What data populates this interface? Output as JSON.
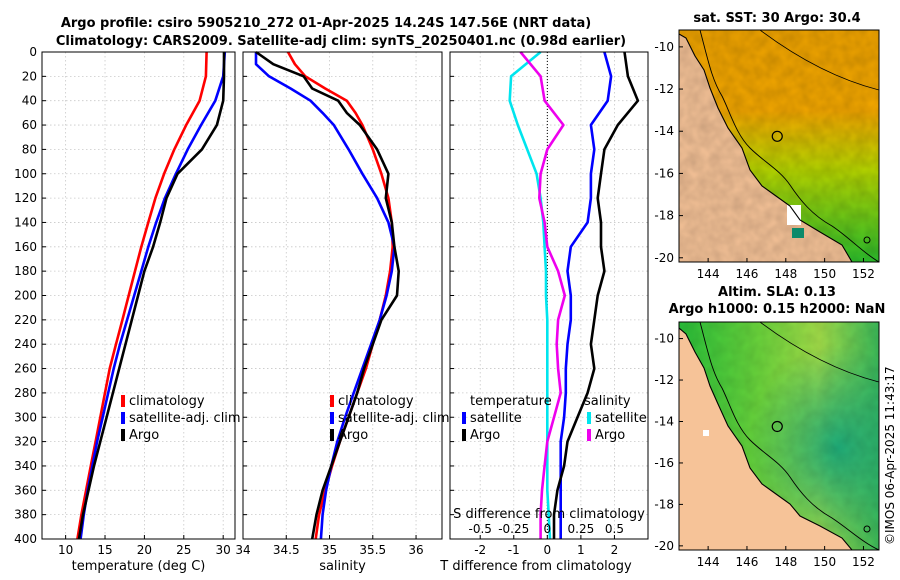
{
  "title": {
    "line1": "Argo profile: csiro 5905210_272 01-Apr-2025 14.24S 147.56E (NRT data)",
    "line2": "Climatology: CARS2009. Satellite-adj clim: synTS_20250401.nc (0.98d earlier)"
  },
  "watermark": "©IMOS 06-Apr-2025 11:43:17",
  "colors": {
    "climatology": "#ff0000",
    "satellite": "#0000ff",
    "argo": "#000000",
    "salinity_satellite": "#00e5ee",
    "salinity_argo": "#ee00ee",
    "land": "#f6c398"
  },
  "depth_axis": {
    "ylim": [
      0,
      400
    ],
    "ticks": [
      "0",
      "20",
      "40",
      "60",
      "80",
      "100",
      "120",
      "140",
      "160",
      "180",
      "200",
      "220",
      "240",
      "260",
      "280",
      "300",
      "320",
      "340",
      "360",
      "380",
      "400"
    ]
  },
  "chart_data": [
    {
      "id": "temperature",
      "type": "line",
      "xlabel": "temperature (deg C)",
      "xlim": [
        7,
        31.5
      ],
      "xticks": [
        "10",
        "15",
        "20",
        "25",
        "30"
      ],
      "xtick_values": [
        10,
        15,
        20,
        25,
        30
      ],
      "depth": [
        0,
        20,
        40,
        60,
        80,
        100,
        120,
        140,
        160,
        180,
        200,
        220,
        240,
        260,
        280,
        300,
        320,
        340,
        360,
        380,
        400
      ],
      "legend": [
        "climatology",
        "satellite-adj. clim",
        "Argo"
      ],
      "series": [
        {
          "name": "climatology",
          "values": [
            27.9,
            27.8,
            27.0,
            25.3,
            23.8,
            22.5,
            21.4,
            20.5,
            19.6,
            18.8,
            18.0,
            17.2,
            16.4,
            15.6,
            15.0,
            14.4,
            13.8,
            13.2,
            12.6,
            12.0,
            11.5
          ]
        },
        {
          "name": "satellite-adj. clim",
          "values": [
            30.2,
            30.0,
            29.0,
            27.2,
            25.5,
            24.0,
            22.6,
            21.5,
            20.5,
            19.6,
            18.7,
            17.8,
            16.9,
            16.1,
            15.4,
            14.7,
            14.0,
            13.4,
            12.8,
            12.3,
            11.9
          ]
        },
        {
          "name": "Argo",
          "values": [
            30.1,
            30.1,
            30.0,
            29.2,
            27.3,
            24.2,
            22.8,
            22.0,
            21.1,
            20.0,
            19.2,
            18.4,
            17.6,
            16.8,
            16.0,
            15.2,
            14.4,
            13.6,
            12.9,
            12.2,
            11.7
          ]
        }
      ]
    },
    {
      "id": "salinity",
      "type": "line",
      "xlabel": "salinity",
      "xlim": [
        34,
        36.3
      ],
      "xticks": [
        "34",
        "34.5",
        "35",
        "35.5",
        "36"
      ],
      "xtick_values": [
        34,
        34.5,
        35,
        35.5,
        36
      ],
      "depth": [
        0,
        10,
        20,
        30,
        40,
        50,
        60,
        80,
        100,
        120,
        140,
        160,
        180,
        200,
        220,
        240,
        260,
        280,
        300,
        320,
        340,
        360,
        380,
        400
      ],
      "legend": [
        "climatology",
        "satellite-adj. clim",
        "Argo"
      ],
      "series": [
        {
          "name": "climatology",
          "values": [
            34.52,
            34.6,
            34.72,
            34.95,
            35.2,
            35.3,
            35.38,
            35.5,
            35.6,
            35.68,
            35.72,
            35.73,
            35.7,
            35.65,
            35.58,
            35.5,
            35.42,
            35.32,
            35.22,
            35.12,
            35.03,
            34.95,
            34.88,
            34.84
          ]
        },
        {
          "name": "satellite-adj. clim",
          "values": [
            34.15,
            34.15,
            34.3,
            34.55,
            34.78,
            34.92,
            35.05,
            35.22,
            35.38,
            35.55,
            35.68,
            35.75,
            35.72,
            35.66,
            35.58,
            35.48,
            35.38,
            35.28,
            35.18,
            35.09,
            35.02,
            34.96,
            34.92,
            34.9
          ]
        },
        {
          "name": "Argo",
          "values": [
            34.15,
            34.35,
            34.7,
            34.8,
            35.1,
            35.2,
            35.35,
            35.55,
            35.68,
            35.65,
            35.72,
            35.75,
            35.8,
            35.78,
            35.6,
            35.5,
            35.4,
            35.32,
            35.22,
            35.12,
            35.02,
            34.92,
            34.85,
            34.8
          ]
        }
      ]
    },
    {
      "id": "differences",
      "type": "line",
      "xlabel": "T difference from climatology",
      "xlim": [
        -2.9,
        3.0
      ],
      "xticks": [
        "-2",
        "-1",
        "0",
        "1",
        "2"
      ],
      "xtick_values": [
        -2,
        -1,
        0,
        1,
        2
      ],
      "top_xlabel": "S difference from climatology",
      "top_xticks": [
        "-0.5",
        "-0.25",
        "0",
        "0.25",
        "0.5"
      ],
      "top_xtick_values": [
        -0.5,
        -0.25,
        0,
        0.25,
        0.5
      ],
      "depth": [
        0,
        20,
        40,
        60,
        80,
        100,
        120,
        140,
        160,
        180,
        200,
        220,
        240,
        260,
        280,
        300,
        320,
        340,
        360,
        380,
        400
      ],
      "legend": {
        "temperature_title": "temperature",
        "salinity_title": "salinity",
        "entries": [
          "satellite",
          "Argo",
          "satellite",
          "Argo"
        ]
      },
      "series": [
        {
          "name": "temperature satellite",
          "values": [
            1.7,
            1.9,
            1.8,
            1.3,
            1.4,
            1.3,
            1.3,
            1.2,
            0.7,
            0.6,
            0.7,
            0.7,
            0.6,
            0.55,
            0.55,
            0.5,
            0.4,
            0.4,
            0.4,
            0.4,
            0.4
          ]
        },
        {
          "name": "temperature Argo",
          "values": [
            2.3,
            2.4,
            2.7,
            2.1,
            1.7,
            1.6,
            1.5,
            1.6,
            1.6,
            1.7,
            1.5,
            1.4,
            1.3,
            1.4,
            1.2,
            0.9,
            0.6,
            0.5,
            0.3,
            0.2,
            0.2
          ]
        },
        {
          "name": "salinity satellite",
          "values": [
            -0.05,
            -0.27,
            -0.28,
            -0.22,
            -0.15,
            -0.08,
            -0.05,
            -0.03,
            -0.02,
            -0.01,
            -0.01,
            0,
            0,
            0,
            0,
            0,
            0,
            0,
            0,
            0.01,
            0.02
          ]
        },
        {
          "name": "salinity Argo",
          "values": [
            -0.2,
            -0.05,
            -0.02,
            0.12,
            0.0,
            -0.05,
            -0.06,
            -0.02,
            0.0,
            0.08,
            0.13,
            0.08,
            0.07,
            0.08,
            0.1,
            0.05,
            0.0,
            -0.02,
            -0.04,
            -0.05,
            -0.05
          ]
        }
      ]
    },
    {
      "id": "sst_map",
      "type": "heatmap",
      "title": "sat. SST: 30 Argo: 30.4",
      "xticks": [
        "144",
        "146",
        "148",
        "150",
        "152"
      ],
      "xtick_values": [
        144,
        146,
        148,
        150,
        152
      ],
      "yticks": [
        "-10",
        "-12",
        "-14",
        "-16",
        "-18",
        "-20"
      ],
      "ytick_values": [
        -10,
        -12,
        -14,
        -16,
        -18,
        -20
      ],
      "xlim": [
        142.5,
        152.8
      ],
      "ylim": [
        -20.2,
        -9.2
      ],
      "profile_lon": 147.56,
      "profile_lat": -14.24
    },
    {
      "id": "sla_map",
      "type": "heatmap",
      "title": "Altim. SLA: 0.13",
      "subtitle": "Argo h1000: 0.15 h2000: NaN",
      "xticks": [
        "144",
        "146",
        "148",
        "150",
        "152"
      ],
      "xtick_values": [
        144,
        146,
        148,
        150,
        152
      ],
      "yticks": [
        "-10",
        "-12",
        "-14",
        "-16",
        "-18",
        "-20"
      ],
      "ytick_values": [
        -10,
        -12,
        -14,
        -16,
        -18,
        -20
      ],
      "xlim": [
        142.5,
        152.8
      ],
      "ylim": [
        -20.2,
        -9.2
      ],
      "profile_lon": 147.56,
      "profile_lat": -14.24
    }
  ]
}
